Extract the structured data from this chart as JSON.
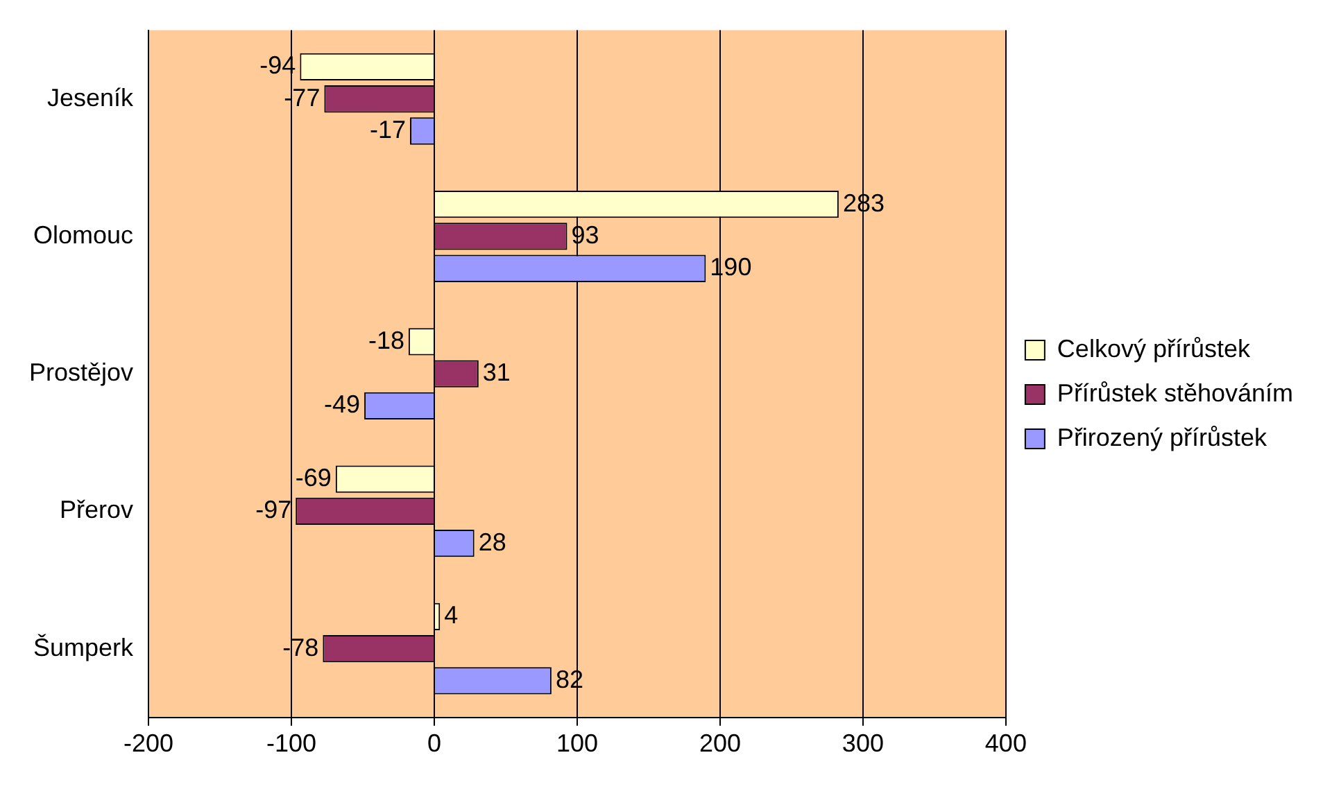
{
  "chart_data": {
    "type": "bar",
    "orientation": "horizontal",
    "categories": [
      "Jeseník",
      "Olomouc",
      "Prostějov",
      "Přerov",
      "Šumperk"
    ],
    "series": [
      {
        "name": "Celkový přírůstek",
        "color": "#ffffcc",
        "values": [
          -94,
          283,
          -18,
          -69,
          4
        ]
      },
      {
        "name": "Přírůstek stěhováním",
        "color": "#993366",
        "values": [
          -77,
          93,
          31,
          -97,
          -78
        ]
      },
      {
        "name": "Přirozený přírůstek",
        "color": "#9999ff",
        "values": [
          -17,
          190,
          -49,
          28,
          82
        ]
      }
    ],
    "xlim": [
      -200,
      400
    ],
    "xticks": [
      -200,
      -100,
      0,
      100,
      200,
      300,
      400
    ],
    "grid": "x",
    "legend": "right",
    "data_labels": true
  }
}
